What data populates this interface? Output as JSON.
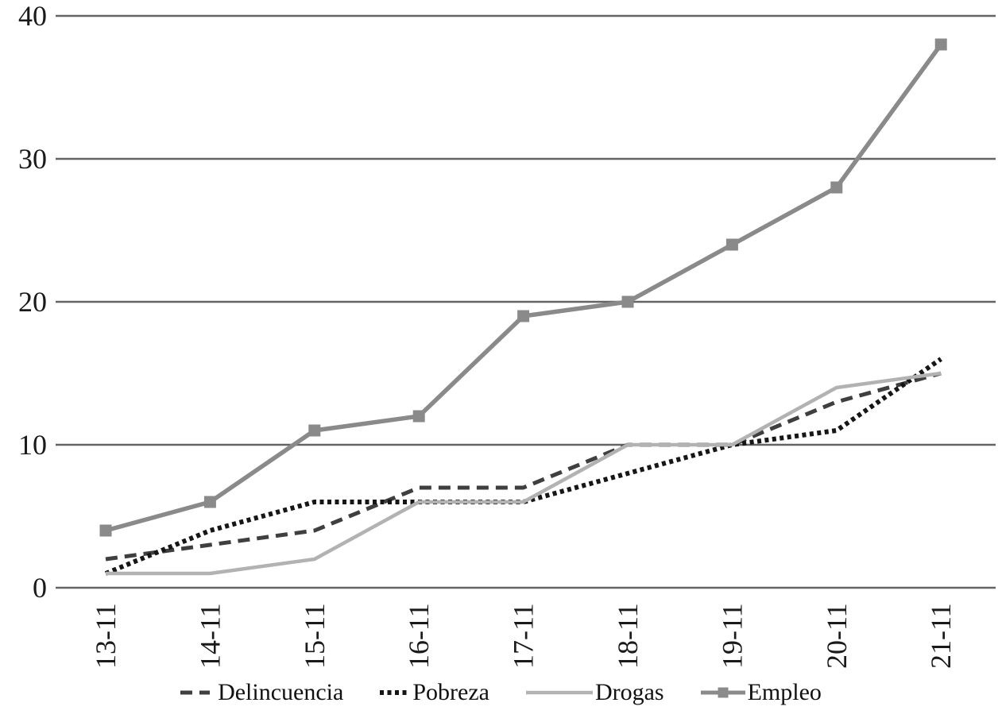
{
  "chart_data": {
    "type": "line",
    "title": "",
    "xlabel": "",
    "ylabel": "",
    "categories": [
      "13-11",
      "14-11",
      "15-11",
      "16-11",
      "17-11",
      "18-11",
      "19-11",
      "20-11",
      "21-11"
    ],
    "series": [
      {
        "name": "Delincuencia",
        "style": "dashed",
        "color": "#3f3f3f",
        "marker": "none",
        "values": [
          2,
          3,
          4,
          7,
          7,
          10,
          10,
          13,
          15
        ]
      },
      {
        "name": "Pobreza",
        "style": "dotted",
        "color": "#161616",
        "marker": "none",
        "values": [
          1,
          4,
          6,
          6,
          6,
          8,
          10,
          11,
          16
        ]
      },
      {
        "name": "Drogas",
        "style": "solid",
        "color": "#b2b2b2",
        "marker": "none",
        "values": [
          1,
          1,
          2,
          6,
          6,
          10,
          10,
          14,
          15
        ]
      },
      {
        "name": "Empleo",
        "style": "solid",
        "color": "#8a8a8a",
        "marker": "square",
        "values": [
          4,
          6,
          11,
          12,
          19,
          20,
          24,
          28,
          38
        ]
      }
    ],
    "ylim": [
      0,
      40
    ],
    "yticks": [
      0,
      10,
      20,
      30,
      40
    ],
    "grid": true,
    "gridline_color": "#646464",
    "text_color": "#1a1a1a",
    "legend_position": "bottom"
  }
}
